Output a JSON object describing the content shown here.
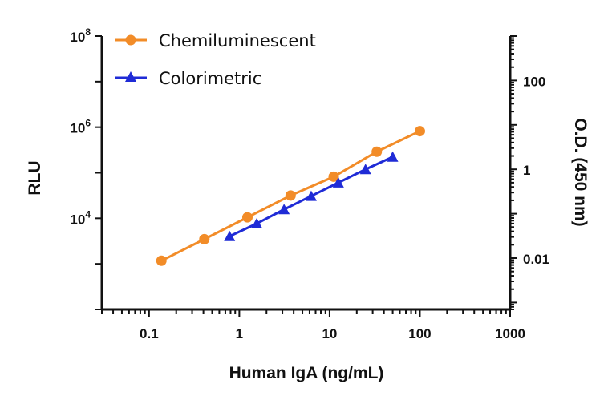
{
  "chart_data": {
    "type": "line",
    "title": "",
    "xlabel": "Human IgA (ng/mL)",
    "ylabel": "RLU",
    "y2label": "O.D. (450 nm)",
    "x_scale": "log",
    "y_scale": "log",
    "y2_scale": "log",
    "xlim": [
      0.03,
      1000
    ],
    "ylim": [
      100,
      100000000
    ],
    "y2lim": [
      0.0007,
      1000
    ],
    "x_ticks": [
      "0.1",
      "1",
      "10",
      "100",
      "1000"
    ],
    "y_ticks": [
      {
        "base": "10",
        "exp": "8"
      },
      {
        "base": "10",
        "exp": "6"
      },
      {
        "base": "10",
        "exp": "4"
      }
    ],
    "y2_ticks": [
      "100",
      "1",
      "0.01"
    ],
    "grid": false,
    "legend_position": "top-left",
    "series": [
      {
        "name": "Chemiluminescent",
        "axis": "left",
        "marker": "circle",
        "color": "#f28c28",
        "x": [
          0.137,
          0.41,
          1.23,
          3.7,
          11.1,
          33.3,
          100
        ],
        "y": [
          1170,
          3480,
          10500,
          31700,
          82000,
          290000,
          820000
        ]
      },
      {
        "name": "Colorimetric",
        "axis": "right",
        "marker": "triangle",
        "color": "#1f2bd6",
        "x": [
          0.78,
          1.56,
          3.13,
          6.25,
          12.5,
          25,
          50
        ],
        "y": [
          0.031,
          0.06,
          0.125,
          0.25,
          0.5,
          1.0,
          1.9
        ]
      }
    ]
  }
}
